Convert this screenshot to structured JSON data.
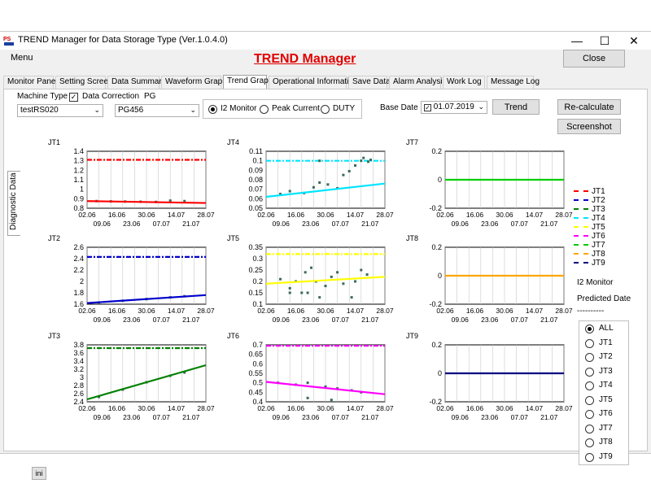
{
  "window": {
    "title": "TREND Manager for Data Storage Type  (Ver.1.0.4.0)",
    "minimize": "—",
    "maximize": "☐",
    "close": "✕"
  },
  "menu": {
    "label": "Menu"
  },
  "brand": "TREND Manager",
  "close_button": "Close",
  "tabs": [
    "Monitor Panel",
    "Setting Screen",
    "Data Summary",
    "Waveform Graph",
    "Trend Graph",
    "Operational Information",
    "Save Data",
    "Alarm Analysis",
    "Work Log",
    "Message Log"
  ],
  "active_tab": "Trend Graph",
  "controls": {
    "machine_type_label": "Machine Type",
    "machine_type_value": "testRS020",
    "data_correction_label": "Data Correction",
    "data_correction_checked": true,
    "pg_label": "PG",
    "pg_value": "PG456",
    "radio_options": [
      "I2 Monitor",
      "Peak Current",
      "DUTY"
    ],
    "radio_selected": "I2 Monitor",
    "base_date_label": "Base Date",
    "base_date_value": "01.07.2019",
    "trend_button": "Trend",
    "recalc_button": "Re-calculate",
    "screenshot_button": "Screenshot"
  },
  "side_tab": "Diagnostic Data",
  "ini_button": "ini",
  "legend": {
    "items": [
      {
        "name": "JT1",
        "color": "#ff0000"
      },
      {
        "name": "JT2",
        "color": "#0000cc"
      },
      {
        "name": "JT3",
        "color": "#008000"
      },
      {
        "name": "JT4",
        "color": "#00e5ff"
      },
      {
        "name": "JT5",
        "color": "#ffff00"
      },
      {
        "name": "JT6",
        "color": "#ff00ff"
      },
      {
        "name": "JT7",
        "color": "#00cc00"
      },
      {
        "name": "JT8",
        "color": "#ffa500"
      },
      {
        "name": "JT9",
        "color": "#000080"
      }
    ],
    "note1": "I2 Monitor",
    "note2": "Predicted Date",
    "note3": "----------"
  },
  "selector": {
    "options": [
      "ALL",
      "JT1",
      "JT2",
      "JT3",
      "JT4",
      "JT5",
      "JT6",
      "JT7",
      "JT8",
      "JT9"
    ],
    "selected": "ALL"
  },
  "chart_data": [
    {
      "type": "scatter",
      "title": "JT1",
      "color": "#ff0000",
      "ylim": [
        0.8,
        1.4
      ],
      "yticks": [
        "1.4",
        "1.3",
        "1.2",
        "1.1",
        "1",
        "0.9",
        "0.8"
      ],
      "threshold": 1.31,
      "trend": [
        0.875,
        0.855
      ],
      "points": [
        [
          0.08,
          0.875
        ],
        [
          0.2,
          0.872
        ],
        [
          0.32,
          0.87
        ],
        [
          0.45,
          0.868
        ],
        [
          0.58,
          0.866
        ],
        [
          0.7,
          0.88
        ],
        [
          0.82,
          0.875
        ]
      ],
      "xticks_top": [
        "02.06",
        "16.06",
        "30.06",
        "14.07",
        "28.07"
      ],
      "xticks_bottom": [
        "09.06",
        "23.06",
        "07.07",
        "21.07"
      ]
    },
    {
      "type": "scatter",
      "title": "JT4",
      "color": "#00e5ff",
      "ylim": [
        0.05,
        0.11
      ],
      "yticks": [
        "0.11",
        "0.1",
        "0.09",
        "0.08",
        "0.07",
        "0.06",
        "0.05"
      ],
      "threshold": 0.1,
      "trend": [
        0.062,
        0.076
      ],
      "points": [
        [
          0.12,
          0.065
        ],
        [
          0.2,
          0.068
        ],
        [
          0.32,
          0.066
        ],
        [
          0.4,
          0.072
        ],
        [
          0.45,
          0.077
        ],
        [
          0.52,
          0.075
        ],
        [
          0.6,
          0.071
        ],
        [
          0.65,
          0.085
        ],
        [
          0.7,
          0.089
        ],
        [
          0.75,
          0.095
        ],
        [
          0.8,
          0.1
        ],
        [
          0.82,
          0.103
        ],
        [
          0.86,
          0.099
        ],
        [
          0.88,
          0.101
        ],
        [
          0.45,
          0.1
        ]
      ],
      "xticks_top": [
        "02.06",
        "16.06",
        "30.06",
        "14.07",
        "28.07"
      ],
      "xticks_bottom": [
        "09.06",
        "23.06",
        "07.07",
        "21.07"
      ]
    },
    {
      "type": "line",
      "title": "JT7",
      "color": "#00cc00",
      "ylim": [
        -0.2,
        0.2
      ],
      "yticks": [
        "0.2",
        "0",
        "-0.2"
      ],
      "threshold": null,
      "trend": [
        0,
        0
      ],
      "points": [],
      "xticks_top": [
        "02.06",
        "16.06",
        "30.06",
        "14.07",
        "28.07"
      ],
      "xticks_bottom": [
        "09.06",
        "23.06",
        "07.07",
        "21.07"
      ]
    },
    {
      "type": "scatter",
      "title": "JT2",
      "color": "#0000cc",
      "ylim": [
        1.6,
        2.6
      ],
      "yticks": [
        "2.6",
        "2.4",
        "2.2",
        "2",
        "1.8",
        "1.6"
      ],
      "threshold": 2.43,
      "trend": [
        1.62,
        1.76
      ],
      "points": [
        [
          0.1,
          1.63
        ],
        [
          0.3,
          1.66
        ],
        [
          0.5,
          1.69
        ],
        [
          0.7,
          1.72
        ],
        [
          0.82,
          1.74
        ]
      ],
      "xticks_top": [
        "02.06",
        "16.06",
        "30.06",
        "14.07",
        "28.07"
      ],
      "xticks_bottom": [
        "09.06",
        "23.06",
        "07.07",
        "21.07"
      ]
    },
    {
      "type": "scatter",
      "title": "JT5",
      "color": "#ffff00",
      "ylim": [
        0.1,
        0.35
      ],
      "yticks": [
        "0.35",
        "0.3",
        "0.25",
        "0.2",
        "0.15",
        "0.1"
      ],
      "threshold": 0.32,
      "trend": [
        0.19,
        0.22
      ],
      "points": [
        [
          0.12,
          0.21
        ],
        [
          0.2,
          0.17
        ],
        [
          0.25,
          0.2
        ],
        [
          0.3,
          0.15
        ],
        [
          0.33,
          0.24
        ],
        [
          0.38,
          0.26
        ],
        [
          0.42,
          0.2
        ],
        [
          0.45,
          0.13
        ],
        [
          0.5,
          0.18
        ],
        [
          0.55,
          0.22
        ],
        [
          0.6,
          0.24
        ],
        [
          0.65,
          0.19
        ],
        [
          0.72,
          0.13
        ],
        [
          0.75,
          0.2
        ],
        [
          0.8,
          0.25
        ],
        [
          0.85,
          0.23
        ],
        [
          0.2,
          0.15
        ],
        [
          0.35,
          0.15
        ]
      ],
      "xticks_top": [
        "02.06",
        "16.06",
        "30.06",
        "14.07",
        "28.07"
      ],
      "xticks_bottom": [
        "09.06",
        "23.06",
        "07.07",
        "21.07"
      ]
    },
    {
      "type": "line",
      "title": "JT8",
      "color": "#ffa500",
      "ylim": [
        -0.2,
        0.2
      ],
      "yticks": [
        "0.2",
        "0",
        "-0.2"
      ],
      "threshold": null,
      "trend": [
        0,
        0
      ],
      "points": [],
      "xticks_top": [
        "02.06",
        "16.06",
        "30.06",
        "14.07",
        "28.07"
      ],
      "xticks_bottom": [
        "09.06",
        "23.06",
        "07.07",
        "21.07"
      ]
    },
    {
      "type": "scatter",
      "title": "JT3",
      "color": "#008000",
      "ylim": [
        2.4,
        3.8
      ],
      "yticks": [
        "3.8",
        "3.6",
        "3.4",
        "3.2",
        "3",
        "2.8",
        "2.6",
        "2.4"
      ],
      "threshold": 3.72,
      "trend": [
        2.46,
        3.3
      ],
      "points": [
        [
          0.1,
          2.52
        ],
        [
          0.3,
          2.7
        ],
        [
          0.5,
          2.88
        ],
        [
          0.7,
          3.04
        ],
        [
          0.82,
          3.12
        ]
      ],
      "xticks_top": [
        "02.06",
        "16.06",
        "30.06",
        "14.07",
        "28.07"
      ],
      "xticks_bottom": [
        "09.06",
        "23.06",
        "07.07",
        "21.07"
      ]
    },
    {
      "type": "scatter",
      "title": "JT6",
      "color": "#ff00ff",
      "ylim": [
        0.4,
        0.7
      ],
      "yticks": [
        "0.7",
        "0.65",
        "0.6",
        "0.55",
        "0.5",
        "0.45",
        "0.4"
      ],
      "threshold": 0.695,
      "trend": [
        0.505,
        0.44
      ],
      "points": [
        [
          0.1,
          0.5
        ],
        [
          0.25,
          0.49
        ],
        [
          0.35,
          0.5
        ],
        [
          0.5,
          0.48
        ],
        [
          0.6,
          0.47
        ],
        [
          0.72,
          0.46
        ],
        [
          0.8,
          0.45
        ],
        [
          0.35,
          0.42
        ],
        [
          0.55,
          0.41
        ]
      ],
      "xticks_top": [
        "02.06",
        "16.06",
        "30.06",
        "14.07",
        "28.07"
      ],
      "xticks_bottom": [
        "09.06",
        "23.06",
        "07.07",
        "21.07"
      ]
    },
    {
      "type": "line",
      "title": "JT9",
      "color": "#000080",
      "ylim": [
        -0.2,
        0.2
      ],
      "yticks": [
        "0.2",
        "0",
        "-0.2"
      ],
      "threshold": null,
      "trend": [
        0,
        0
      ],
      "points": [],
      "xticks_top": [
        "02.06",
        "16.06",
        "30.06",
        "14.07",
        "28.07"
      ],
      "xticks_bottom": [
        "09.06",
        "23.06",
        "07.07",
        "21.07"
      ]
    }
  ]
}
